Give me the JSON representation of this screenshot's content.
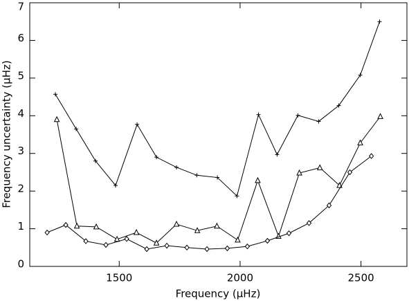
{
  "chart_data": {
    "type": "line",
    "x_label": "Frequency (μHz)",
    "y_label": "Frequency uncertainty (μHz)",
    "xlim": [
      1130,
      2690
    ],
    "xticks": [
      1500,
      2000,
      2500
    ],
    "ylim": [
      0,
      7
    ],
    "yticks": [
      0,
      1,
      2,
      3,
      4,
      5,
      6,
      7
    ],
    "series": [
      {
        "marker": "plus",
        "color": "#000000",
        "x": [
          1236,
          1322,
          1402,
          1485,
          1574,
          1654,
          1737,
          1821,
          1906,
          1987,
          2076,
          2153,
          2239,
          2325,
          2408,
          2497,
          2577
        ],
        "values": [
          4.57,
          3.65,
          2.8,
          2.15,
          3.77,
          2.9,
          2.63,
          2.42,
          2.36,
          1.87,
          4.03,
          2.97,
          4.01,
          3.85,
          4.27,
          5.08,
          6.5
        ]
      },
      {
        "marker": "triangle",
        "color": "#000000",
        "x": [
          1242,
          1325,
          1405,
          1491,
          1571,
          1654,
          1737,
          1823,
          1904,
          1990,
          2073,
          2159,
          2245,
          2330,
          2411,
          2497,
          2580
        ],
        "values": [
          3.9,
          1.07,
          1.05,
          0.72,
          0.9,
          0.62,
          1.12,
          0.95,
          1.07,
          0.7,
          2.28,
          0.8,
          2.48,
          2.62,
          2.15,
          3.28,
          3.98
        ]
      },
      {
        "marker": "diamond",
        "color": "#000000",
        "x": [
          1202,
          1279,
          1362,
          1445,
          1531,
          1614,
          1697,
          1780,
          1863,
          1947,
          2030,
          2113,
          2202,
          2285,
          2368,
          2454,
          2543
        ],
        "values": [
          0.9,
          1.1,
          0.67,
          0.57,
          0.73,
          0.46,
          0.55,
          0.5,
          0.46,
          0.48,
          0.53,
          0.68,
          0.88,
          1.15,
          1.62,
          2.5,
          2.93
        ]
      }
    ]
  }
}
